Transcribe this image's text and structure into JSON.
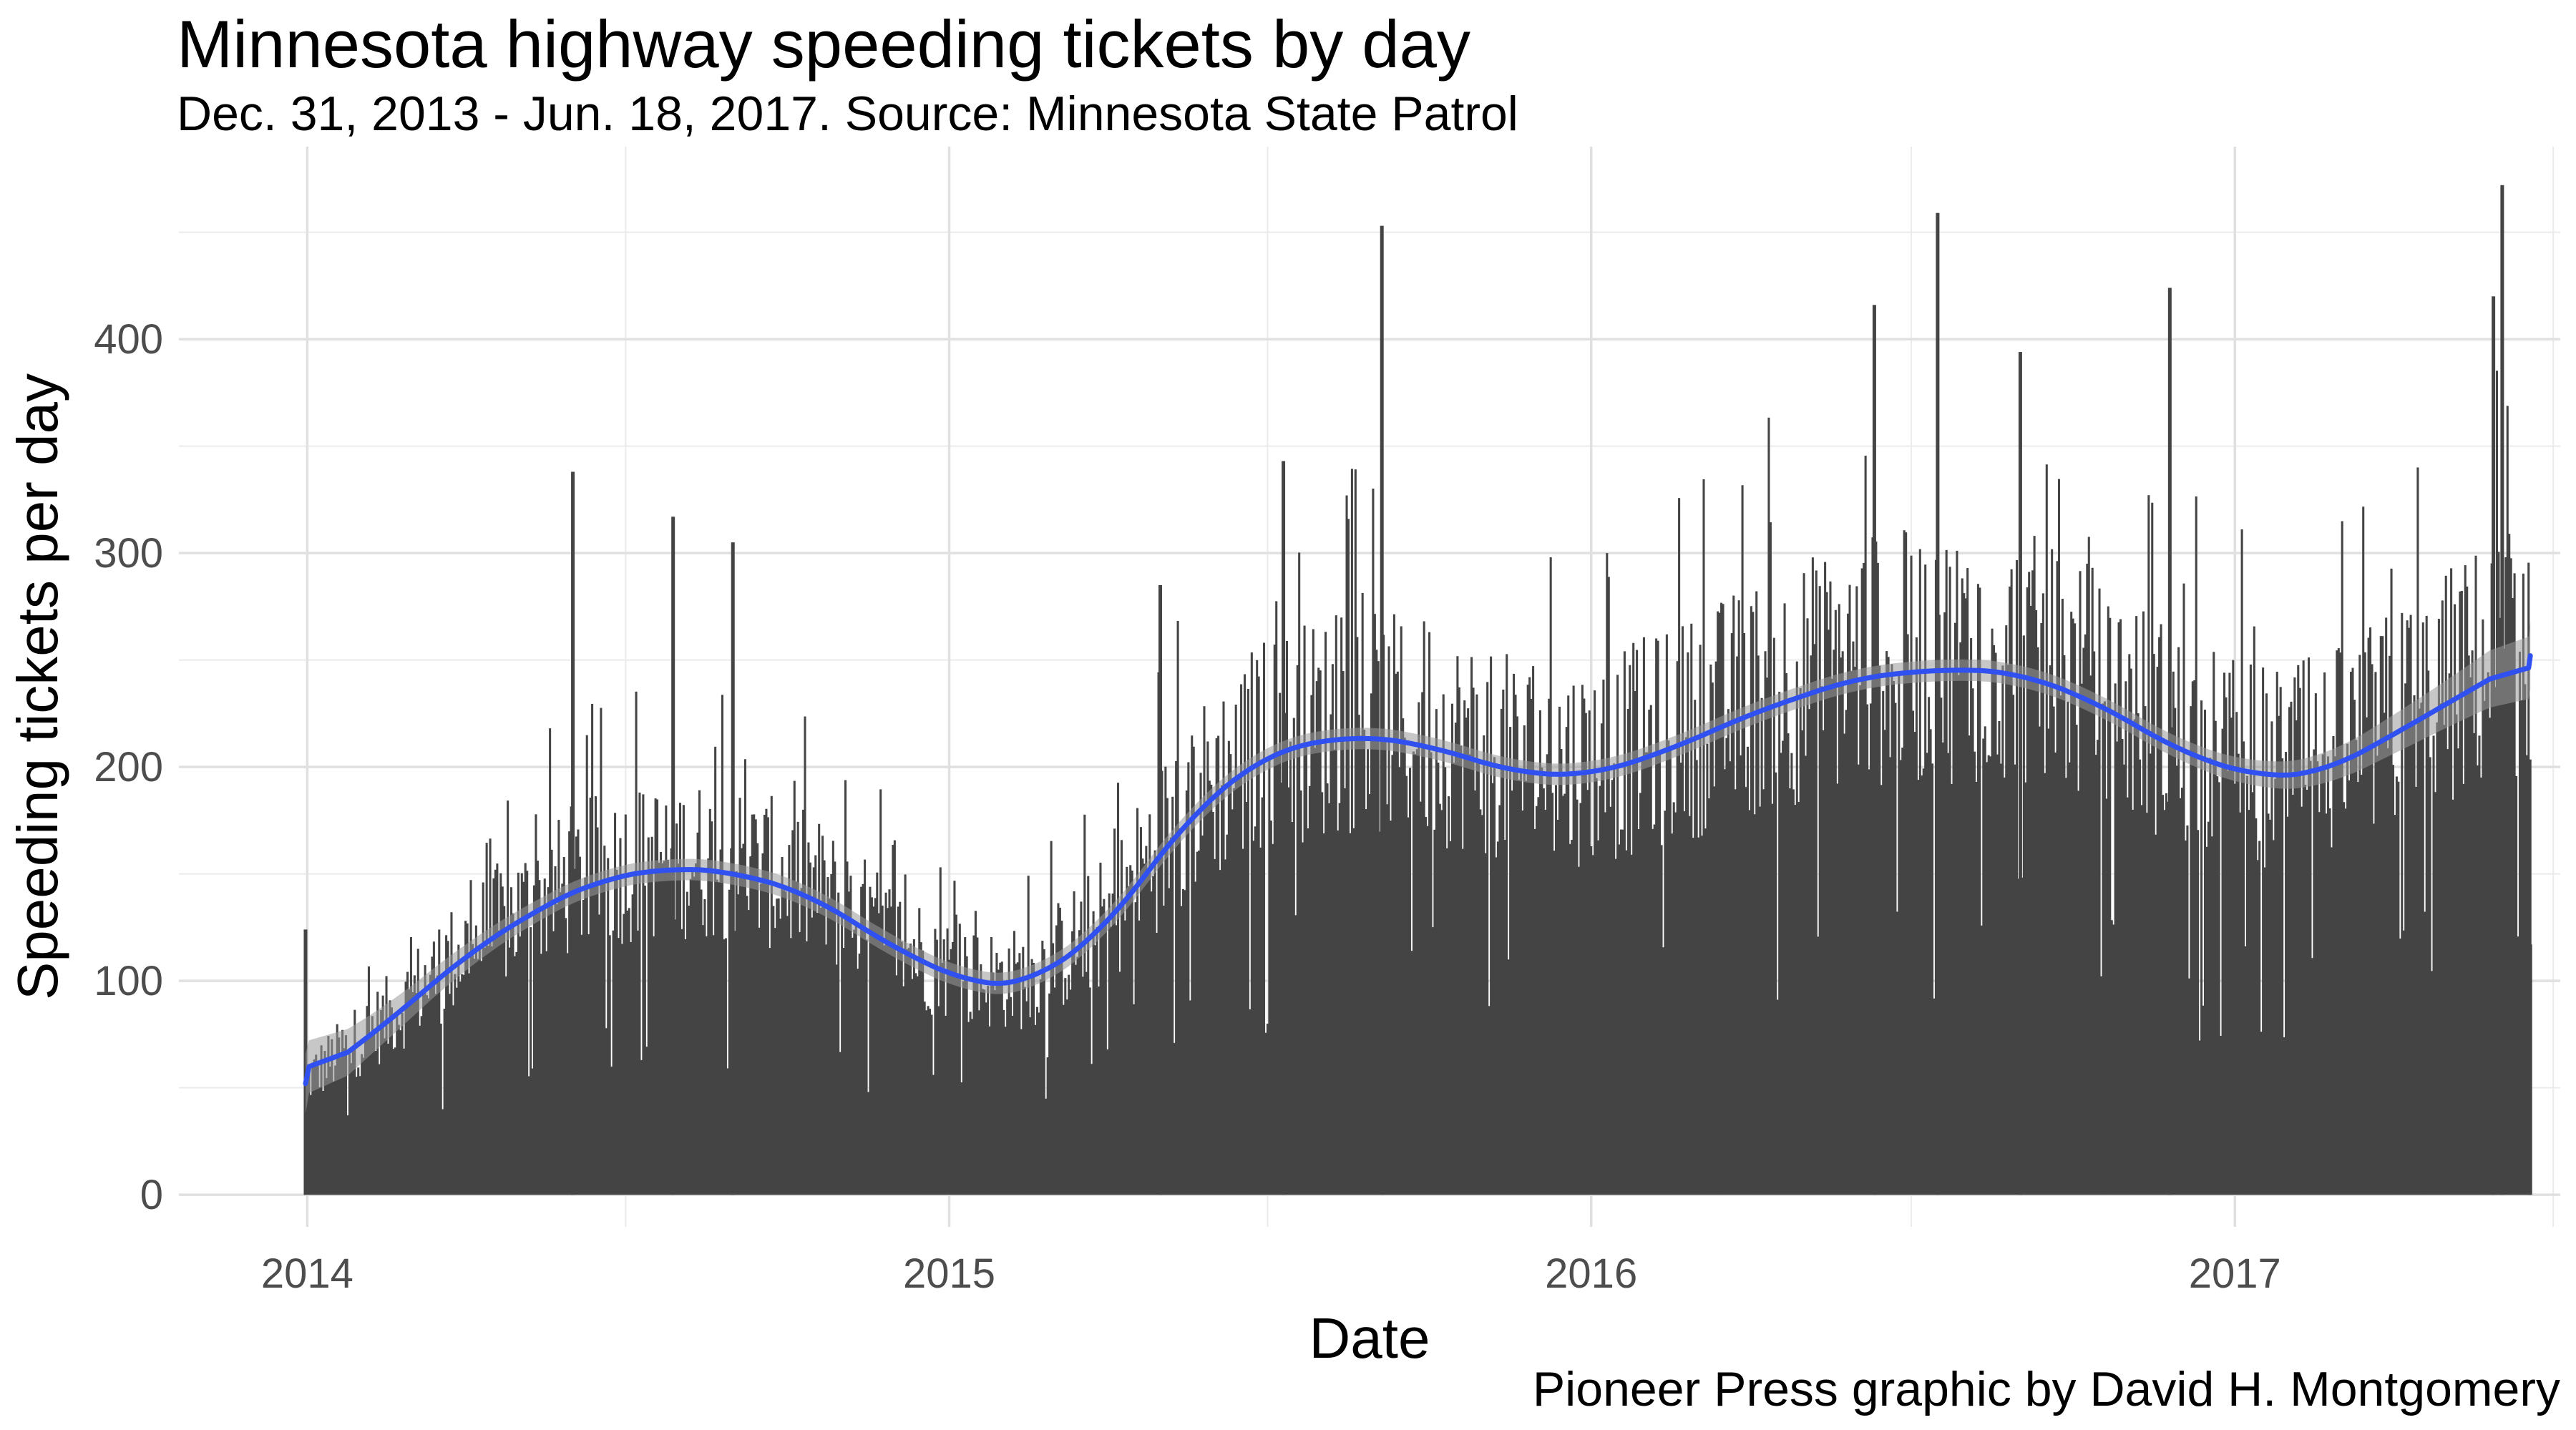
{
  "chart_data": {
    "type": "bar",
    "title": "Minnesota highway speeding tickets by day",
    "subtitle": "Dec. 31, 2013 - Jun. 18, 2017. Source: Minnesota State Patrol",
    "caption": "Pioneer Press graphic by David H. Montgomery",
    "xlabel": "Date",
    "ylabel": "Speeding tickets per day",
    "x_range": [
      "2013-10-20",
      "2017-07-05"
    ],
    "ylim": [
      -15,
      490
    ],
    "x_ticks": [
      {
        "label": "2014",
        "date": "2014-01-01"
      },
      {
        "label": "2015",
        "date": "2015-01-01"
      },
      {
        "label": "2016",
        "date": "2016-01-01"
      },
      {
        "label": "2017",
        "date": "2017-01-01"
      }
    ],
    "x_minor_ticks": [
      "2014-07-01",
      "2015-07-01",
      "2016-07-01",
      "2017-07-01"
    ],
    "y_ticks": [
      0,
      100,
      200,
      300,
      400
    ],
    "y_minor_ticks": [
      50,
      150,
      250,
      350,
      450
    ],
    "grid": true,
    "bar_color": "#444444",
    "trend_color": "#3050f0",
    "band_color": "#999999",
    "daily_series": {
      "name": "Speeding tickets per day",
      "start_date": "2013-12-31",
      "end_date": "2017-06-18",
      "values_approx_from_trend": true
    },
    "peaks": [
      {
        "date": "2013-12-31",
        "value": 124
      },
      {
        "date": "2014-06-01",
        "value": 338
      },
      {
        "date": "2014-07-28",
        "value": 317
      },
      {
        "date": "2014-08-31",
        "value": 305
      },
      {
        "date": "2015-05-01",
        "value": 285
      },
      {
        "date": "2015-07-10",
        "value": 343
      },
      {
        "date": "2015-09-04",
        "value": 453
      },
      {
        "date": "2016-06-10",
        "value": 416
      },
      {
        "date": "2016-07-16",
        "value": 459
      },
      {
        "date": "2016-09-01",
        "value": 394
      },
      {
        "date": "2016-11-25",
        "value": 424
      },
      {
        "date": "2017-05-28",
        "value": 420
      },
      {
        "date": "2017-06-02",
        "value": 472
      },
      {
        "date": "2017-06-18",
        "value": 117
      }
    ],
    "trend": [
      {
        "date": "2013-12-31",
        "value": 52,
        "lo": 38,
        "hi": 66
      },
      {
        "date": "2014-02-15",
        "value": 80,
        "lo": 72,
        "hi": 88
      },
      {
        "date": "2014-04-01",
        "value": 112,
        "lo": 106,
        "hi": 118
      },
      {
        "date": "2014-05-15",
        "value": 135,
        "lo": 130,
        "hi": 140
      },
      {
        "date": "2014-06-15",
        "value": 147,
        "lo": 142,
        "hi": 152
      },
      {
        "date": "2014-07-25",
        "value": 153,
        "lo": 148,
        "hi": 158
      },
      {
        "date": "2014-09-01",
        "value": 151,
        "lo": 146,
        "hi": 156
      },
      {
        "date": "2014-10-15",
        "value": 140,
        "lo": 135,
        "hi": 145
      },
      {
        "date": "2014-12-01",
        "value": 115,
        "lo": 110,
        "hi": 120
      },
      {
        "date": "2015-01-15",
        "value": 98,
        "lo": 93,
        "hi": 103
      },
      {
        "date": "2015-02-15",
        "value": 98,
        "lo": 93,
        "hi": 103
      },
      {
        "date": "2015-04-01",
        "value": 125,
        "lo": 120,
        "hi": 130
      },
      {
        "date": "2015-05-15",
        "value": 175,
        "lo": 170,
        "hi": 180
      },
      {
        "date": "2015-07-01",
        "value": 207,
        "lo": 202,
        "hi": 212
      },
      {
        "date": "2015-08-20",
        "value": 215,
        "lo": 210,
        "hi": 220
      },
      {
        "date": "2015-10-01",
        "value": 210,
        "lo": 205,
        "hi": 215
      },
      {
        "date": "2015-11-20",
        "value": 197,
        "lo": 192,
        "hi": 202
      },
      {
        "date": "2016-01-01",
        "value": 196,
        "lo": 191,
        "hi": 201
      },
      {
        "date": "2016-02-15",
        "value": 208,
        "lo": 203,
        "hi": 213
      },
      {
        "date": "2016-04-01",
        "value": 225,
        "lo": 220,
        "hi": 230
      },
      {
        "date": "2016-06-01",
        "value": 242,
        "lo": 237,
        "hi": 247
      },
      {
        "date": "2016-07-25",
        "value": 246,
        "lo": 241,
        "hi": 251
      },
      {
        "date": "2016-09-01",
        "value": 244,
        "lo": 239,
        "hi": 249
      },
      {
        "date": "2016-10-15",
        "value": 230,
        "lo": 225,
        "hi": 235
      },
      {
        "date": "2016-12-01",
        "value": 207,
        "lo": 202,
        "hi": 212
      },
      {
        "date": "2017-01-15",
        "value": 195,
        "lo": 189,
        "hi": 201
      },
      {
        "date": "2017-02-20",
        "value": 197,
        "lo": 190,
        "hi": 204
      },
      {
        "date": "2017-04-01",
        "value": 215,
        "lo": 206,
        "hi": 224
      },
      {
        "date": "2017-05-15",
        "value": 236,
        "lo": 224,
        "hi": 248
      },
      {
        "date": "2017-06-18",
        "value": 252,
        "lo": 236,
        "hi": 268
      }
    ]
  }
}
